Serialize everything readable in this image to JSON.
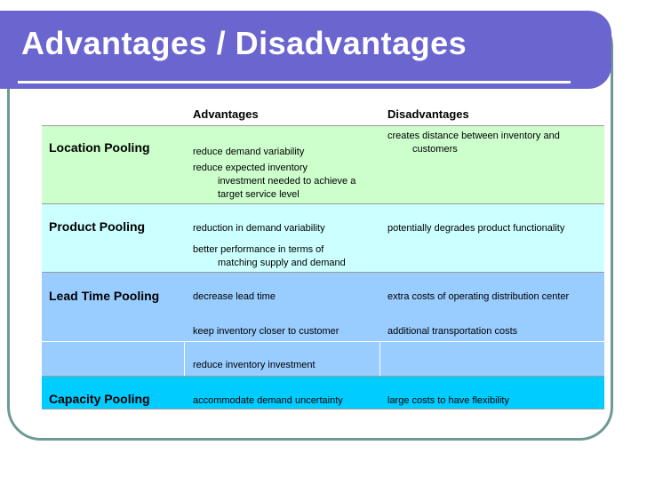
{
  "title": "Advantages / Disadvantages",
  "headers": {
    "advantages": "Advantages",
    "disadvantages": "Disadvantages"
  },
  "colors": {
    "title_bar": "#6b66cf",
    "location": "#ccffcc",
    "product": "#ccffff",
    "lead_time": "#99ccff",
    "capacity": "#00ccff"
  },
  "rows": {
    "location": {
      "label": "Location Pooling",
      "adv1": "reduce demand variability",
      "adv2_line1": "reduce expected inventory",
      "adv2_line2": "investment needed to achieve a",
      "adv2_line3": "target service level",
      "dis1_line1": "creates distance between inventory and",
      "dis1_line2": "customers"
    },
    "product": {
      "label": "Product Pooling",
      "adv1": "reduction in demand variability",
      "adv2_line1": "better performance in terms of",
      "adv2_line2": "matching supply and demand",
      "dis1": "potentially degrades product functionality"
    },
    "lead_time": {
      "label": "Lead Time Pooling",
      "adv1": "decrease lead time",
      "adv2": "keep inventory closer to customer",
      "adv3": "reduce inventory investment",
      "dis1": "extra costs of operating distribution center",
      "dis2": "additional transportation costs"
    },
    "capacity": {
      "label": "Capacity Pooling",
      "adv1": "accommodate demand uncertainty",
      "dis1": "large costs to have flexibility"
    }
  }
}
